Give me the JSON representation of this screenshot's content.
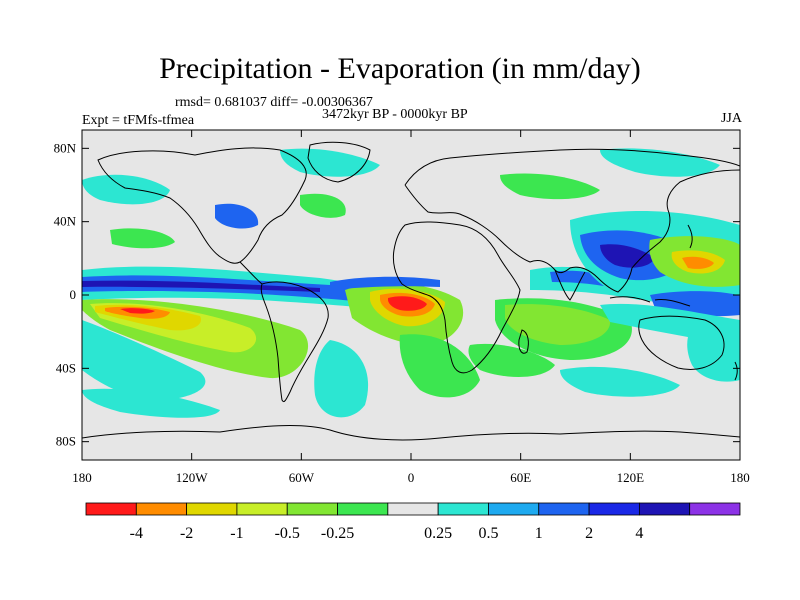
{
  "title": "Precipitation - Evaporation (in mm/day)",
  "stats": "rmsd= 0.681037 diff= -0.00306367",
  "period": "3472kyr BP - 0000kyr BP",
  "experiment": "Expt = tFMfs-tfmea",
  "season": "JJA",
  "lat_ticks": [
    {
      "lat": 80,
      "label": "80N"
    },
    {
      "lat": 40,
      "label": "40N"
    },
    {
      "lat": 0,
      "label": "0"
    },
    {
      "lat": -40,
      "label": "40S"
    },
    {
      "lat": -80,
      "label": "80S"
    }
  ],
  "lon_ticks": [
    {
      "lon": -180,
      "label": "180"
    },
    {
      "lon": -120,
      "label": "120W"
    },
    {
      "lon": -60,
      "label": "60W"
    },
    {
      "lon": 0,
      "label": "0"
    },
    {
      "lon": 60,
      "label": "60E"
    },
    {
      "lon": 120,
      "label": "120E"
    },
    {
      "lon": 180,
      "label": "180"
    }
  ],
  "colorbar": {
    "colors": [
      "#ff1a1a",
      "#ff8c00",
      "#e0d700",
      "#c8ee28",
      "#82e632",
      "#3ce650",
      "#e6e6e6",
      "#2ce6d2",
      "#1eaaf0",
      "#1e64f0",
      "#1a28e6",
      "#1e14b4",
      "#8c32e6"
    ],
    "labels": [
      "-4",
      "-2",
      "-1",
      "-0.5",
      "-0.25",
      "0.25",
      "0.5",
      "1",
      "2",
      "4"
    ]
  },
  "colors": {
    "background": "#e6e6e6",
    "coastline": "#000000"
  }
}
